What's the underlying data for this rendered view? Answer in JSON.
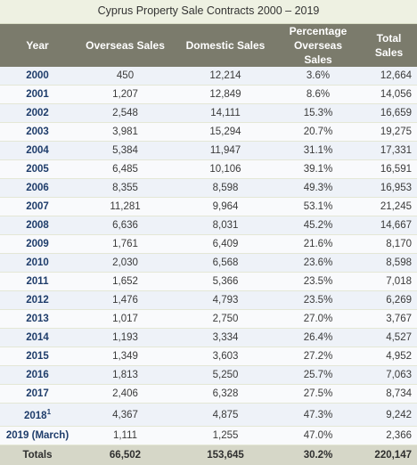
{
  "caption": "Cyprus Property Sale Contracts 2000 – 2019",
  "headers": {
    "year": "Year",
    "overseas": "Overseas Sales",
    "domestic": "Domestic Sales",
    "pct_line1": "Percentage",
    "pct_line2": "Overseas Sales",
    "total_line1": "Total",
    "total_line2": "Sales"
  },
  "rows": [
    {
      "year": "2000",
      "overseas": "450",
      "domestic": "12,214",
      "pct": "3.6%",
      "total": "12,664"
    },
    {
      "year": "2001",
      "overseas": "1,207",
      "domestic": "12,849",
      "pct": "8.6%",
      "total": "14,056"
    },
    {
      "year": "2002",
      "overseas": "2,548",
      "domestic": "14,111",
      "pct": "15.3%",
      "total": "16,659"
    },
    {
      "year": "2003",
      "overseas": "3,981",
      "domestic": "15,294",
      "pct": "20.7%",
      "total": "19,275"
    },
    {
      "year": "2004",
      "overseas": "5,384",
      "domestic": "11,947",
      "pct": "31.1%",
      "total": "17,331"
    },
    {
      "year": "2005",
      "overseas": "6,485",
      "domestic": "10,106",
      "pct": "39.1%",
      "total": "16,591"
    },
    {
      "year": "2006",
      "overseas": "8,355",
      "domestic": "8,598",
      "pct": "49.3%",
      "total": "16,953"
    },
    {
      "year": "2007",
      "overseas": "11,281",
      "domestic": "9,964",
      "pct": "53.1%",
      "total": "21,245"
    },
    {
      "year": "2008",
      "overseas": "6,636",
      "domestic": "8,031",
      "pct": "45.2%",
      "total": "14,667"
    },
    {
      "year": "2009",
      "overseas": "1,761",
      "domestic": "6,409",
      "pct": "21.6%",
      "total": "8,170"
    },
    {
      "year": "2010",
      "overseas": "2,030",
      "domestic": "6,568",
      "pct": "23.6%",
      "total": "8,598"
    },
    {
      "year": "2011",
      "overseas": "1,652",
      "domestic": "5,366",
      "pct": "23.5%",
      "total": "7,018"
    },
    {
      "year": "2012",
      "overseas": "1,476",
      "domestic": "4,793",
      "pct": "23.5%",
      "total": "6,269"
    },
    {
      "year": "2013",
      "overseas": "1,017",
      "domestic": "2,750",
      "pct": "27.0%",
      "total": "3,767"
    },
    {
      "year": "2014",
      "overseas": "1,193",
      "domestic": "3,334",
      "pct": "26.4%",
      "total": "4,527"
    },
    {
      "year": "2015",
      "overseas": "1,349",
      "domestic": "3,603",
      "pct": "27.2%",
      "total": "4,952"
    },
    {
      "year": "2016",
      "overseas": "1,813",
      "domestic": "5,250",
      "pct": "25.7%",
      "total": "7,063"
    },
    {
      "year": "2017",
      "overseas": "2,406",
      "domestic": "6,328",
      "pct": "27.5%",
      "total": "8,734"
    },
    {
      "year": "2018",
      "sup": "1",
      "overseas": "4,367",
      "domestic": "4,875",
      "pct": "47.3%",
      "total": "9,242"
    },
    {
      "year": "2019 (March)",
      "overseas": "1,111",
      "domestic": "1,255",
      "pct": "47.0%",
      "total": "2,366"
    }
  ],
  "totals": {
    "label": "Totals",
    "overseas": "66,502",
    "domestic": "153,645",
    "pct": "30.2%",
    "total": "220,147"
  }
}
